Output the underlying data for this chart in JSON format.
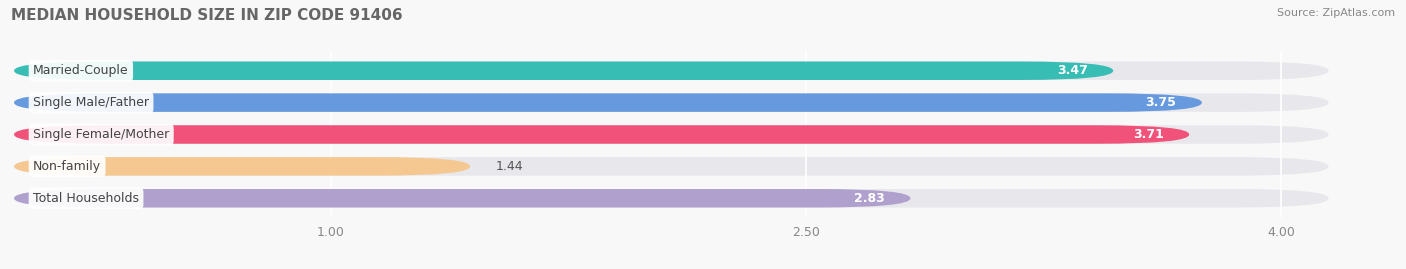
{
  "title": "MEDIAN HOUSEHOLD SIZE IN ZIP CODE 91406",
  "source": "Source: ZipAtlas.com",
  "categories": [
    "Married-Couple",
    "Single Male/Father",
    "Single Female/Mother",
    "Non-family",
    "Total Households"
  ],
  "values": [
    3.47,
    3.75,
    3.71,
    1.44,
    2.83
  ],
  "bar_colors": [
    "#38bdb5",
    "#6699dd",
    "#f0527a",
    "#f5c892",
    "#b0a0ce"
  ],
  "track_color": "#e8e8ec",
  "label_bg_color": "#ffffff",
  "xlim_min": 0.0,
  "xlim_max": 4.35,
  "data_min": 0.0,
  "data_max": 4.0,
  "xticks": [
    1.0,
    2.5,
    4.0
  ],
  "xtick_labels": [
    "1.00",
    "2.50",
    "4.00"
  ],
  "title_fontsize": 11,
  "source_fontsize": 8,
  "bar_height": 0.58,
  "background_color": "#f8f8f8",
  "grid_color": "#ffffff",
  "value_fontsize": 9,
  "label_fontsize": 9
}
